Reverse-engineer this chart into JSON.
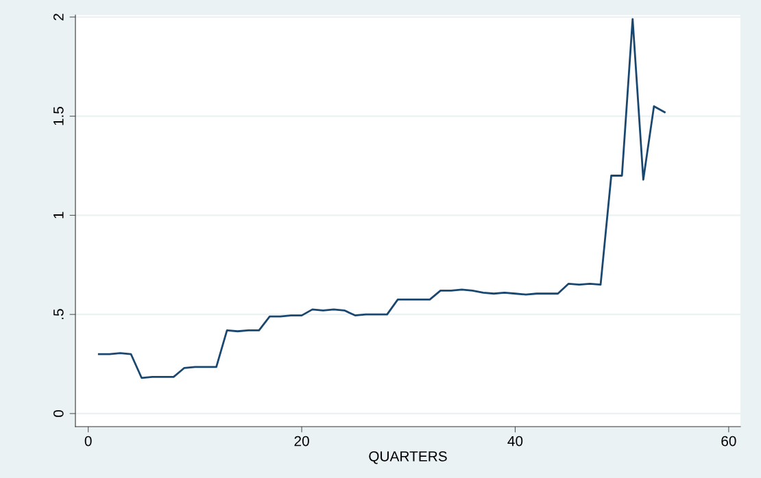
{
  "chart_data": {
    "type": "line",
    "xlabel": "QUARTERS",
    "x": [
      1,
      2,
      3,
      4,
      5,
      6,
      7,
      8,
      9,
      10,
      11,
      12,
      13,
      14,
      15,
      16,
      17,
      18,
      19,
      20,
      21,
      22,
      23,
      24,
      25,
      26,
      27,
      28,
      29,
      30,
      31,
      32,
      33,
      34,
      35,
      36,
      37,
      38,
      39,
      40,
      41,
      42,
      43,
      44,
      45,
      46,
      47,
      48,
      49,
      50,
      51,
      52,
      53,
      54
    ],
    "series": [
      {
        "color": "#1a476f",
        "values": [
          0.3,
          0.3,
          0.305,
          0.3,
          0.18,
          0.185,
          0.185,
          0.185,
          0.23,
          0.235,
          0.235,
          0.235,
          0.42,
          0.415,
          0.42,
          0.42,
          0.49,
          0.49,
          0.495,
          0.495,
          0.525,
          0.52,
          0.525,
          0.52,
          0.495,
          0.5,
          0.5,
          0.5,
          0.575,
          0.575,
          0.575,
          0.575,
          0.62,
          0.62,
          0.625,
          0.62,
          0.61,
          0.605,
          0.61,
          0.605,
          0.6,
          0.605,
          0.605,
          0.605,
          0.655,
          0.65,
          0.655,
          0.65,
          1.2,
          1.2,
          1.99,
          1.18,
          1.55,
          1.52
        ]
      }
    ],
    "xlim": [
      -1.2,
      61.1
    ],
    "ylim": [
      -0.066,
      2.01
    ],
    "xticks": [
      0,
      20,
      40,
      60
    ],
    "yticks": [
      0,
      {
        "value": 0.5,
        "label": ".5"
      },
      1,
      1.5,
      2
    ],
    "grid": "y",
    "marker": "none",
    "line_style": "solid"
  }
}
